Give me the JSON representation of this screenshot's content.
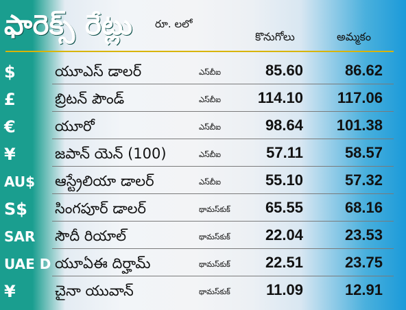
{
  "header": {
    "title": "ఫారెక్స్ రేట్లు",
    "unit": "రూ. లలో",
    "buy_label": "కొనుగోలు",
    "sell_label": "అమ్మకం"
  },
  "colors": {
    "accent_left": "#1a9e8f",
    "accent_right": "#1b9ad9",
    "divider": "#d8b400"
  },
  "rates": [
    {
      "symbol": "$",
      "name": "యూఎస్ డాలర్",
      "source": "ఎస్‌బీఐ",
      "buy": "85.60",
      "sell": "86.62"
    },
    {
      "symbol": "£",
      "name": "బ్రిటన్ పౌండ్",
      "source": "ఎస్‌బీఐ",
      "buy": "114.10",
      "sell": "117.06"
    },
    {
      "symbol": "€",
      "name": "యూరో",
      "source": "ఎస్‌బీఐ",
      "buy": "98.64",
      "sell": "101.38"
    },
    {
      "symbol": "¥",
      "name": "జపాన్ యెన్ (100)",
      "source": "ఎస్‌బీఐ",
      "buy": "57.11",
      "sell": "58.57"
    },
    {
      "symbol": "AU$",
      "name": "ఆస్ట్రేలియా డాలర్",
      "source": "ఎస్‌బీఐ",
      "buy": "55.10",
      "sell": "57.32"
    },
    {
      "symbol": "S$",
      "name": "సింగపూర్ డాలర్",
      "source": "థామస్‌కుక్",
      "buy": "65.55",
      "sell": "68.16"
    },
    {
      "symbol": "SAR",
      "name": "సౌదీ రియాల్",
      "source": "థామస్‌కుక్",
      "buy": "22.04",
      "sell": "23.53"
    },
    {
      "symbol": "UAE D",
      "name": "యూఏఈ దిర్హామ్",
      "source": "థామస్‌కుక్",
      "buy": "22.51",
      "sell": "23.75"
    },
    {
      "symbol": "¥",
      "name": "చైనా యువాన్",
      "source": "థామస్‌కుక్",
      "buy": "11.09",
      "sell": "12.91"
    }
  ]
}
